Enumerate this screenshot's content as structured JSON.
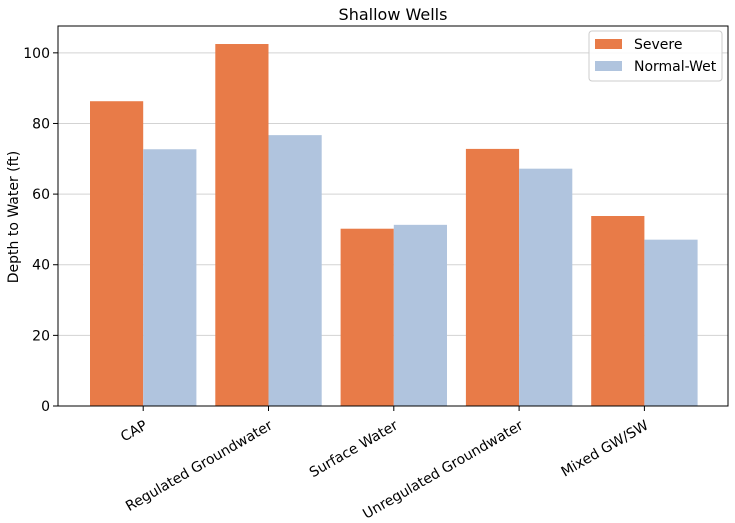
{
  "chart_data": {
    "type": "bar",
    "title": "Shallow Wells",
    "xlabel": "",
    "ylabel": "Depth to Water (ft)",
    "categories": [
      "CAP",
      "Regulated Groundwater",
      "Surface Water",
      "Unregulated Groundwater",
      "Mixed GW/SW"
    ],
    "series": [
      {
        "name": "Severe",
        "color": "#e87b48",
        "values": [
          86.3,
          102.5,
          50.2,
          72.8,
          53.8
        ]
      },
      {
        "name": "Normal-Wet",
        "color": "#b0c4de",
        "values": [
          72.7,
          76.7,
          51.3,
          67.2,
          47.1
        ]
      }
    ],
    "ylim": [
      0,
      107.6
    ],
    "yticks": [
      0,
      20,
      40,
      60,
      80,
      100
    ],
    "grid": "y",
    "legend_position": "top-right"
  }
}
